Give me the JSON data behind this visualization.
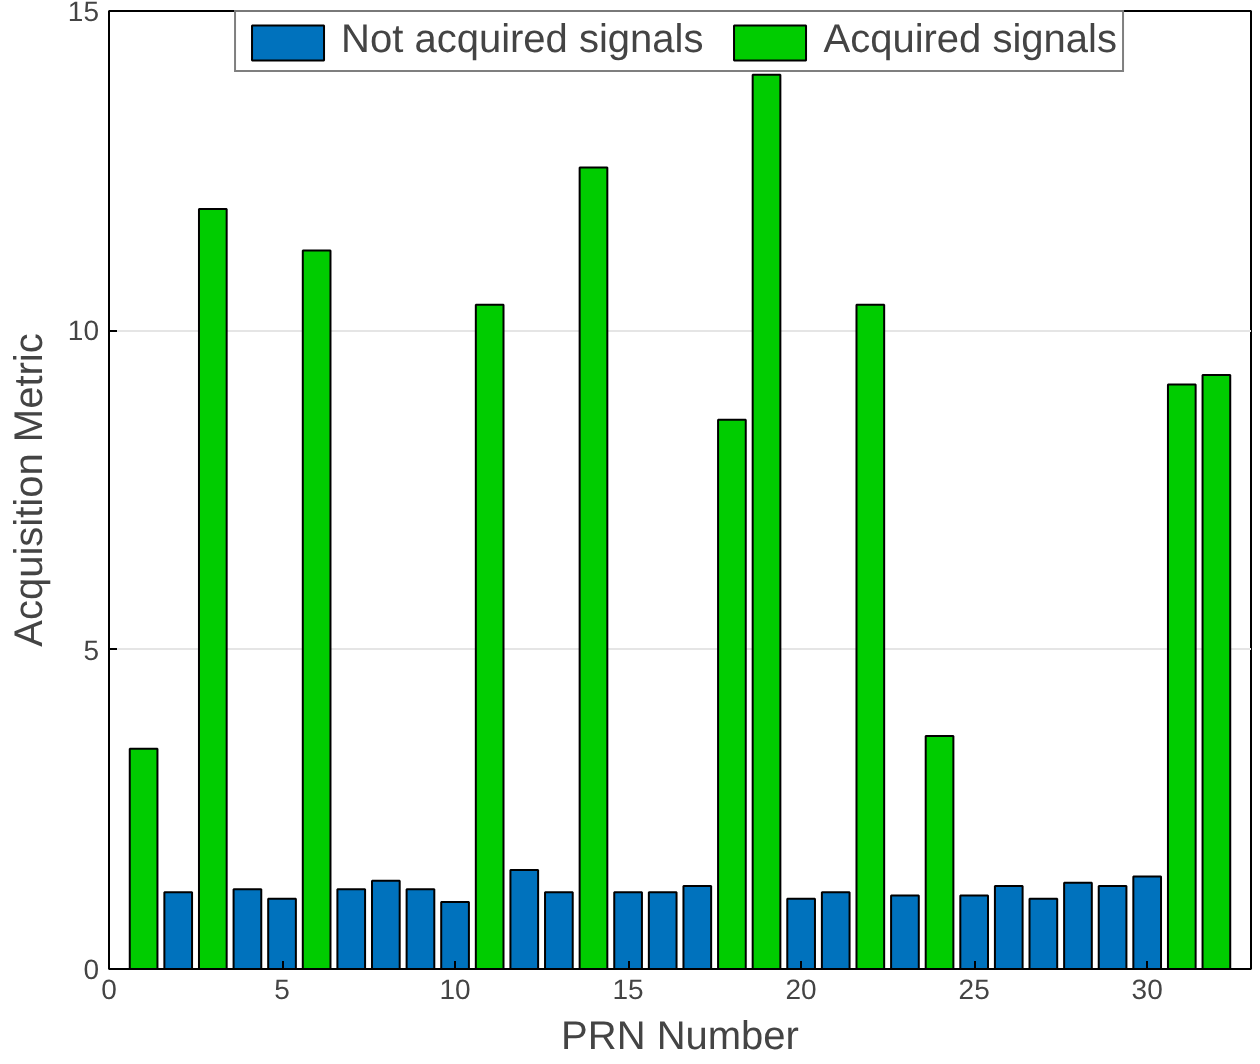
{
  "chart_data": {
    "type": "bar",
    "xlabel": "PRN Number",
    "ylabel": "Acquisition Metric",
    "x": [
      1,
      2,
      3,
      4,
      5,
      6,
      7,
      8,
      9,
      10,
      11,
      12,
      13,
      14,
      15,
      16,
      17,
      18,
      19,
      20,
      21,
      22,
      23,
      24,
      25,
      26,
      27,
      28,
      29,
      30,
      31,
      32
    ],
    "series": [
      {
        "name": "Not acquired signals",
        "color": "#0072bd",
        "values": [
          null,
          1.2,
          null,
          1.25,
          1.1,
          null,
          1.25,
          1.38,
          1.25,
          1.05,
          null,
          1.55,
          1.2,
          null,
          1.2,
          1.2,
          1.3,
          null,
          null,
          1.1,
          1.2,
          null,
          1.15,
          null,
          1.15,
          1.3,
          1.1,
          1.35,
          1.3,
          1.45,
          null,
          null
        ]
      },
      {
        "name": "Acquired signals",
        "color": "#00cc00",
        "values": [
          3.45,
          null,
          11.9,
          null,
          null,
          11.25,
          null,
          null,
          null,
          null,
          10.4,
          null,
          null,
          12.55,
          null,
          null,
          null,
          8.6,
          14.0,
          null,
          null,
          10.4,
          null,
          3.65,
          null,
          null,
          null,
          null,
          null,
          null,
          9.15,
          9.3
        ]
      }
    ],
    "xlim": [
      0,
      33
    ],
    "xticks": [
      0,
      5,
      10,
      15,
      20,
      25,
      30
    ],
    "ylim": [
      0,
      15
    ],
    "yticks": [
      0,
      5,
      10,
      15
    ],
    "grid": "y",
    "legend": "top"
  }
}
